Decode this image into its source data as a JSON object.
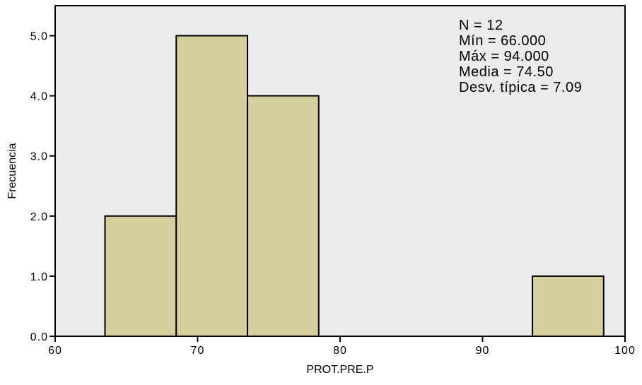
{
  "chart_data": {
    "type": "bar",
    "subtype": "histogram",
    "xlabel": "PROT.PRE.P",
    "ylabel": "Frecuencia",
    "xlim": [
      60,
      100
    ],
    "ylim": [
      0,
      5.5
    ],
    "x_ticks": [
      60,
      70,
      80,
      90,
      100
    ],
    "y_ticks": [
      "0.0",
      "1.0",
      "2.0",
      "3.0",
      "4.0",
      "5.0"
    ],
    "bins": [
      {
        "start": 63.5,
        "end": 68.5,
        "value": 2
      },
      {
        "start": 68.5,
        "end": 73.5,
        "value": 5
      },
      {
        "start": 73.5,
        "end": 78.5,
        "value": 4
      },
      {
        "start": 93.5,
        "end": 98.5,
        "value": 1
      }
    ],
    "grid": false,
    "stats": [
      "N = 12",
      "Mín = 66.000",
      "Máx = 94.000",
      "Media = 74.50",
      "Desv. típica = 7.09"
    ],
    "colors": {
      "plot_background": "#ebebeb",
      "bar_fill": "#d4cf9c",
      "bar_stroke": "#000000"
    }
  }
}
